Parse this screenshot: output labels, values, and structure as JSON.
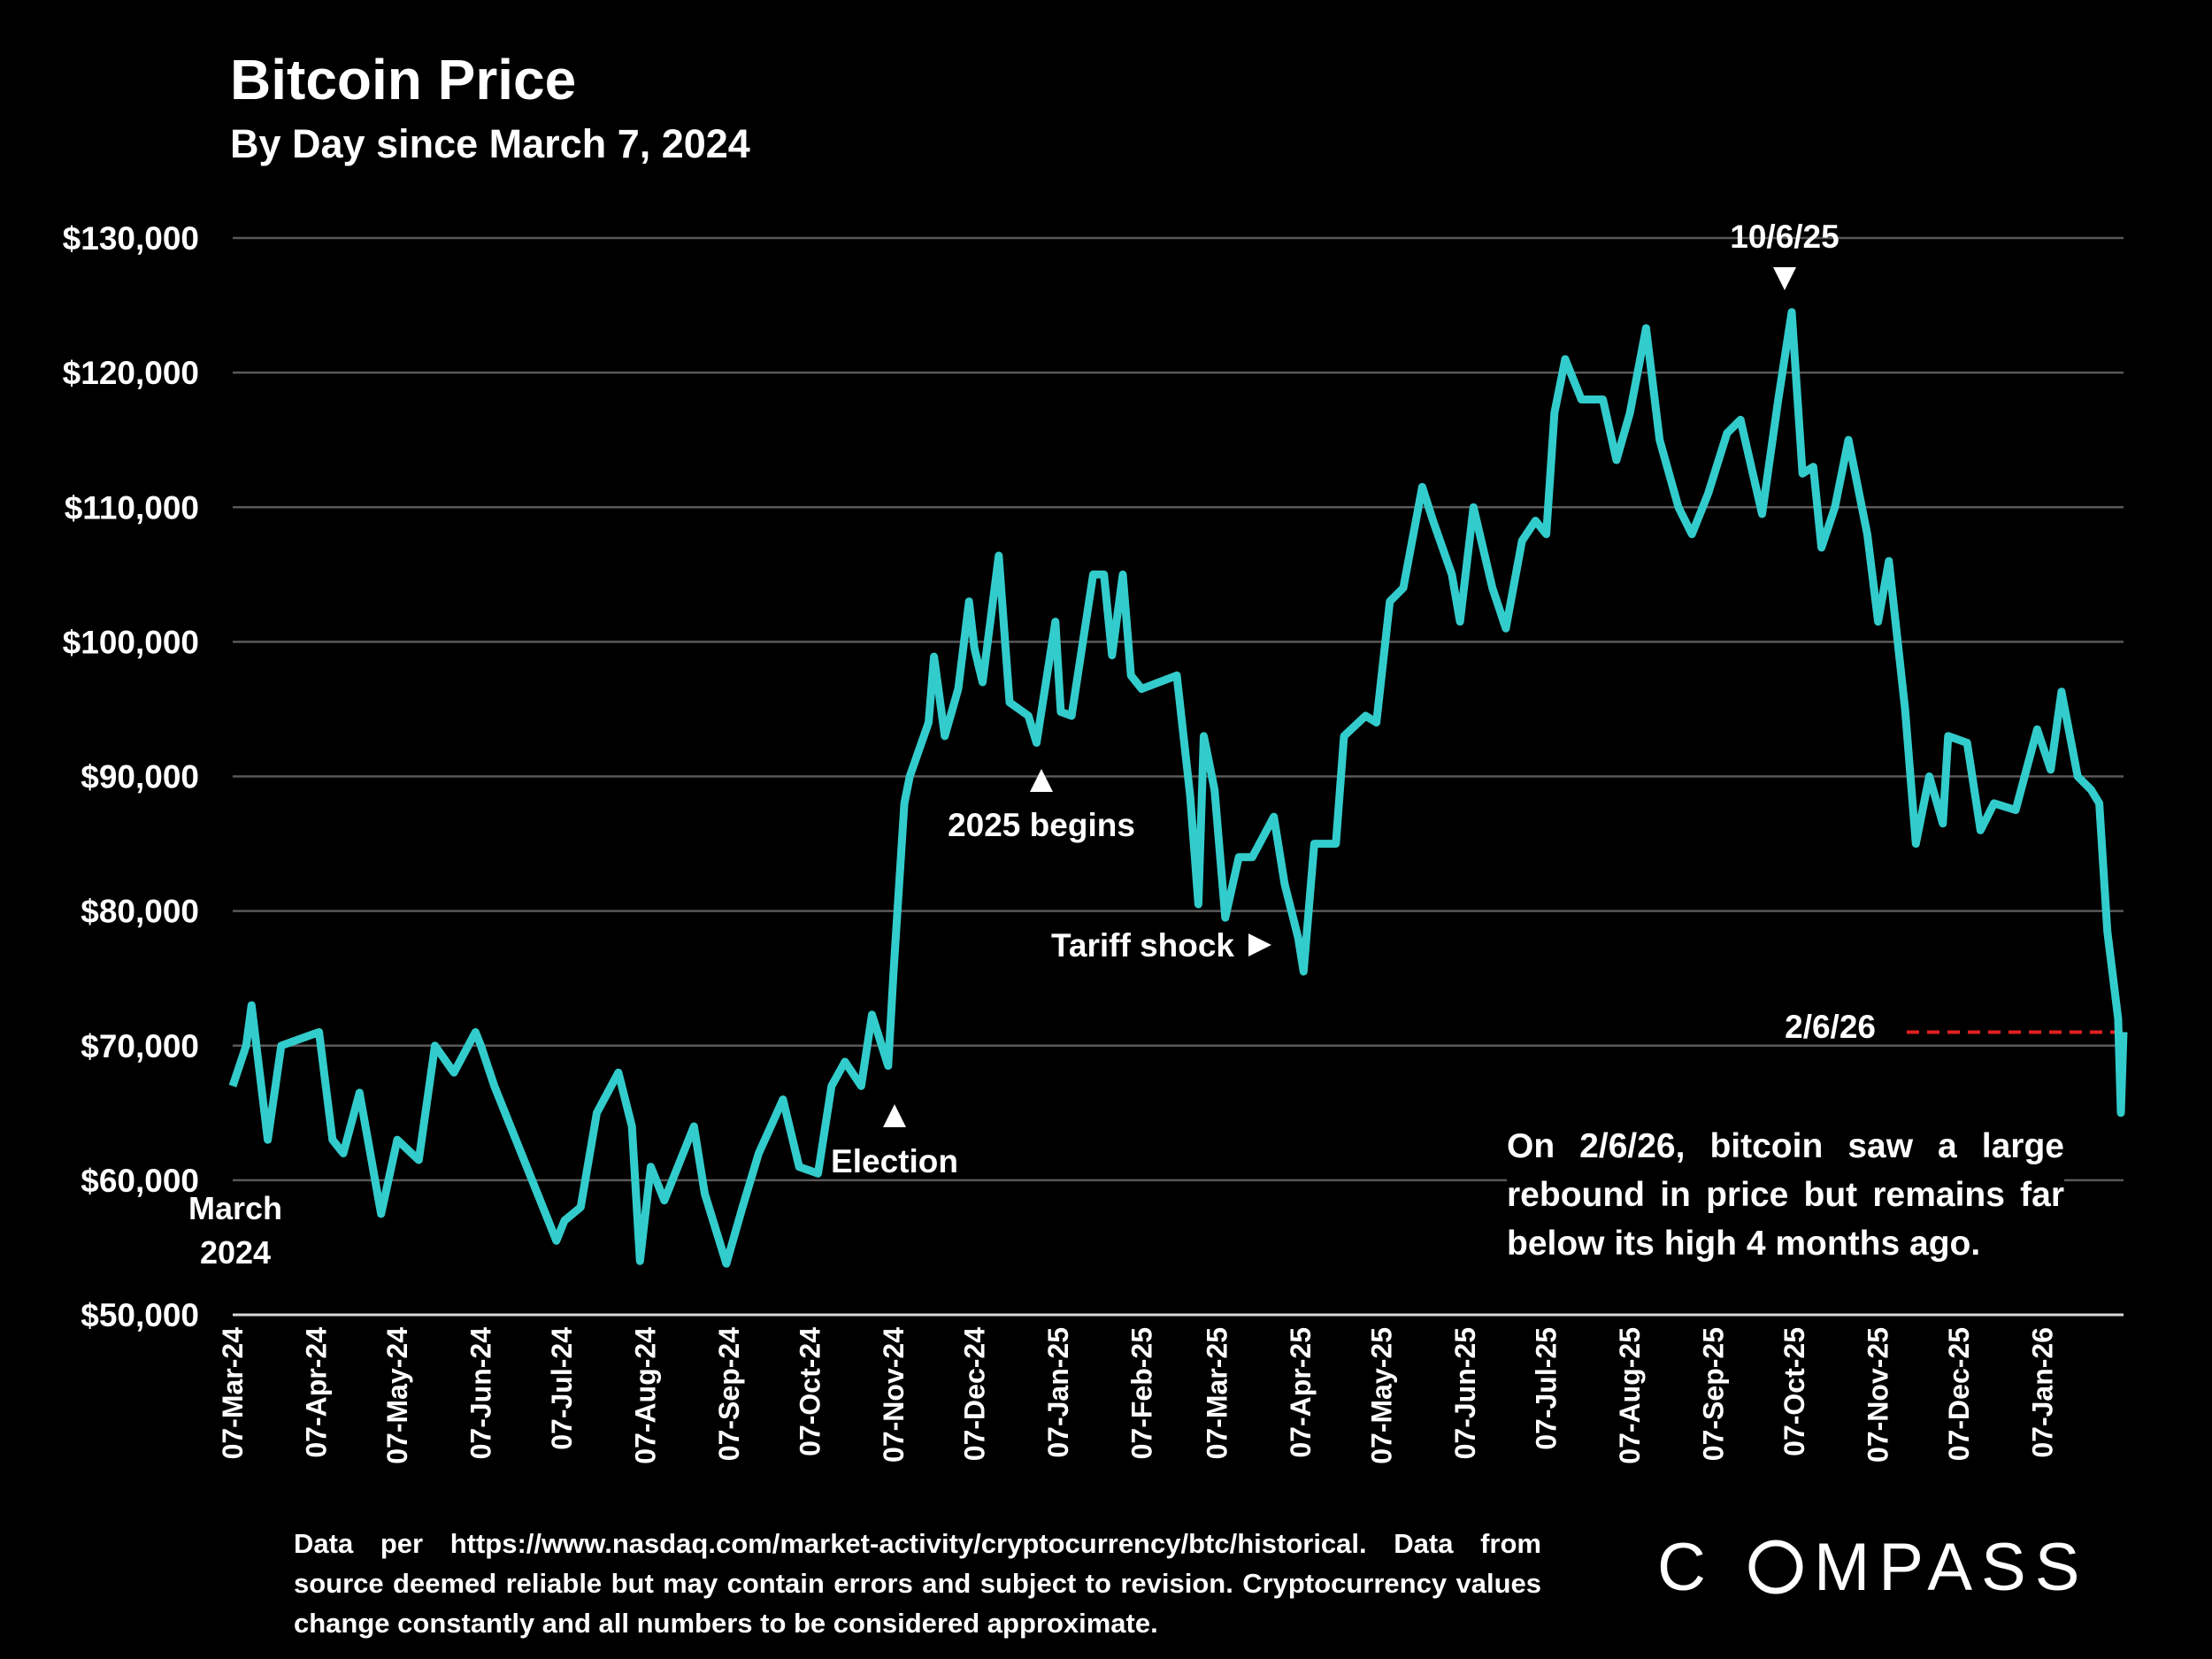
{
  "chart_data": {
    "type": "line",
    "title": "Bitcoin Price",
    "subtitle": "By Day since March 7, 2024",
    "ylim": [
      50000,
      130000
    ],
    "yticks": [
      "$50,000",
      "$60,000",
      "$70,000",
      "$80,000",
      "$90,000",
      "$100,000",
      "$110,000",
      "$120,000",
      "$130,000"
    ],
    "ytick_values": [
      50000,
      60000,
      70000,
      80000,
      90000,
      100000,
      110000,
      120000,
      130000
    ],
    "xlim": [
      "2024-03-07",
      "2026-02-06"
    ],
    "xticks": [
      "07-Mar-24",
      "07-Apr-24",
      "07-May-24",
      "07-Jun-24",
      "07-Jul-24",
      "07-Aug-24",
      "07-Sep-24",
      "07-Oct-24",
      "07-Nov-24",
      "07-Dec-24",
      "07-Jan-25",
      "07-Feb-25",
      "07-Mar-25",
      "07-Apr-25",
      "07-May-25",
      "07-Jun-25",
      "07-Jul-25",
      "07-Aug-25",
      "07-Sep-25",
      "07-Oct-25",
      "07-Nov-25",
      "07-Dec-25",
      "07-Jan-26"
    ],
    "xtick_dates": [
      "2024-03-07",
      "2024-04-07",
      "2024-05-07",
      "2024-06-07",
      "2024-07-07",
      "2024-08-07",
      "2024-09-07",
      "2024-10-07",
      "2024-11-07",
      "2024-12-07",
      "2025-01-07",
      "2025-02-07",
      "2025-03-07",
      "2025-04-07",
      "2025-05-07",
      "2025-06-07",
      "2025-07-07",
      "2025-08-07",
      "2025-09-07",
      "2025-10-07",
      "2025-11-07",
      "2025-12-07",
      "2026-01-07"
    ],
    "grid": true,
    "line_color": "#33cccc",
    "reference_line": {
      "value": 71000,
      "color": "#e02020",
      "label": "2/6/26"
    },
    "points": [
      [
        "2024-03-07",
        67000
      ],
      [
        "2024-03-12",
        70000
      ],
      [
        "2024-03-14",
        73000
      ],
      [
        "2024-03-20",
        63000
      ],
      [
        "2024-03-25",
        70000
      ],
      [
        "2024-04-01",
        70500
      ],
      [
        "2024-04-08",
        71000
      ],
      [
        "2024-04-13",
        63000
      ],
      [
        "2024-04-17",
        62000
      ],
      [
        "2024-04-23",
        66500
      ],
      [
        "2024-05-01",
        57500
      ],
      [
        "2024-05-07",
        63000
      ],
      [
        "2024-05-15",
        61500
      ],
      [
        "2024-05-21",
        70000
      ],
      [
        "2024-05-28",
        68000
      ],
      [
        "2024-06-05",
        71000
      ],
      [
        "2024-06-07",
        70000
      ],
      [
        "2024-06-12",
        67000
      ],
      [
        "2024-06-24",
        61000
      ],
      [
        "2024-07-05",
        55500
      ],
      [
        "2024-07-08",
        57000
      ],
      [
        "2024-07-14",
        58000
      ],
      [
        "2024-07-20",
        65000
      ],
      [
        "2024-07-28",
        68000
      ],
      [
        "2024-08-02",
        64000
      ],
      [
        "2024-08-05",
        54000
      ],
      [
        "2024-08-09",
        61000
      ],
      [
        "2024-08-14",
        58500
      ],
      [
        "2024-08-25",
        64000
      ],
      [
        "2024-08-29",
        59000
      ],
      [
        "2024-09-06",
        53800
      ],
      [
        "2024-09-12",
        58000
      ],
      [
        "2024-09-18",
        62000
      ],
      [
        "2024-09-27",
        66000
      ],
      [
        "2024-10-03",
        61000
      ],
      [
        "2024-10-10",
        60500
      ],
      [
        "2024-10-15",
        67000
      ],
      [
        "2024-10-20",
        68800
      ],
      [
        "2024-10-26",
        67000
      ],
      [
        "2024-10-30",
        72300
      ],
      [
        "2024-11-05",
        68500
      ],
      [
        "2024-11-07",
        75500
      ],
      [
        "2024-11-11",
        88000
      ],
      [
        "2024-11-13",
        90000
      ],
      [
        "2024-11-20",
        94000
      ],
      [
        "2024-11-22",
        98900
      ],
      [
        "2024-11-26",
        93000
      ],
      [
        "2024-12-01",
        96500
      ],
      [
        "2024-12-05",
        103000
      ],
      [
        "2024-12-07",
        99500
      ],
      [
        "2024-12-10",
        97000
      ],
      [
        "2024-12-16",
        106400
      ],
      [
        "2024-12-20",
        95500
      ],
      [
        "2024-12-27",
        94500
      ],
      [
        "2024-12-30",
        92500
      ],
      [
        "2025-01-06",
        101500
      ],
      [
        "2025-01-08",
        94800
      ],
      [
        "2025-01-12",
        94500
      ],
      [
        "2025-01-20",
        105000
      ],
      [
        "2025-01-24",
        105000
      ],
      [
        "2025-01-27",
        99000
      ],
      [
        "2025-01-31",
        105000
      ],
      [
        "2025-02-03",
        97500
      ],
      [
        "2025-02-07",
        96500
      ],
      [
        "2025-02-20",
        97500
      ],
      [
        "2025-02-25",
        88500
      ],
      [
        "2025-02-28",
        80500
      ],
      [
        "2025-03-02",
        93000
      ],
      [
        "2025-03-06",
        89000
      ],
      [
        "2025-03-10",
        79500
      ],
      [
        "2025-03-15",
        84000
      ],
      [
        "2025-03-20",
        84000
      ],
      [
        "2025-03-28",
        87000
      ],
      [
        "2025-04-01",
        82000
      ],
      [
        "2025-04-06",
        78000
      ],
      [
        "2025-04-08",
        75500
      ],
      [
        "2025-04-12",
        85000
      ],
      [
        "2025-04-20",
        85000
      ],
      [
        "2025-04-23",
        93000
      ],
      [
        "2025-05-01",
        94500
      ],
      [
        "2025-05-05",
        94000
      ],
      [
        "2025-05-10",
        103000
      ],
      [
        "2025-05-15",
        104000
      ],
      [
        "2025-05-22",
        111500
      ],
      [
        "2025-05-26",
        109000
      ],
      [
        "2025-06-02",
        105000
      ],
      [
        "2025-06-05",
        101500
      ],
      [
        "2025-06-10",
        110000
      ],
      [
        "2025-06-17",
        104000
      ],
      [
        "2025-06-22",
        101000
      ],
      [
        "2025-06-28",
        107500
      ],
      [
        "2025-07-03",
        109000
      ],
      [
        "2025-07-07",
        108000
      ],
      [
        "2025-07-10",
        117000
      ],
      [
        "2025-07-14",
        121000
      ],
      [
        "2025-07-20",
        118000
      ],
      [
        "2025-07-28",
        118000
      ],
      [
        "2025-08-02",
        113500
      ],
      [
        "2025-08-07",
        117000
      ],
      [
        "2025-08-13",
        123300
      ],
      [
        "2025-08-18",
        115000
      ],
      [
        "2025-08-25",
        110000
      ],
      [
        "2025-08-30",
        108000
      ],
      [
        "2025-09-05",
        111000
      ],
      [
        "2025-09-12",
        115500
      ],
      [
        "2025-09-17",
        116500
      ],
      [
        "2025-09-25",
        109500
      ],
      [
        "2025-10-01",
        118000
      ],
      [
        "2025-10-06",
        124500
      ],
      [
        "2025-10-10",
        112500
      ],
      [
        "2025-10-14",
        113000
      ],
      [
        "2025-10-17",
        107000
      ],
      [
        "2025-10-22",
        110000
      ],
      [
        "2025-10-27",
        115000
      ],
      [
        "2025-11-03",
        108000
      ],
      [
        "2025-11-07",
        101500
      ],
      [
        "2025-11-11",
        106000
      ],
      [
        "2025-11-17",
        95000
      ],
      [
        "2025-11-21",
        85000
      ],
      [
        "2025-11-26",
        90000
      ],
      [
        "2025-12-01",
        86500
      ],
      [
        "2025-12-03",
        93000
      ],
      [
        "2025-12-10",
        92500
      ],
      [
        "2025-12-15",
        86000
      ],
      [
        "2025-12-20",
        88000
      ],
      [
        "2025-12-28",
        87500
      ],
      [
        "2026-01-05",
        93500
      ],
      [
        "2026-01-10",
        90500
      ],
      [
        "2026-01-14",
        96300
      ],
      [
        "2026-01-20",
        90000
      ],
      [
        "2026-01-25",
        89000
      ],
      [
        "2026-01-28",
        88000
      ],
      [
        "2026-01-31",
        78500
      ],
      [
        "2026-02-04",
        72000
      ],
      [
        "2026-02-05",
        65000
      ],
      [
        "2026-02-06",
        71000
      ]
    ],
    "annotations": {
      "peak": "10/6/25",
      "year_start": "2025 begins",
      "tariff": "Tariff shock",
      "election": "Election",
      "start_line1": "March",
      "start_line2": "2024",
      "note": "On 2/6/26, bitcoin saw a large rebound in price but remains far below its high 4 months ago."
    }
  },
  "footer": {
    "source": "Data per https://www.nasdaq.com/market-activity/cryptocurrency/btc/historical. Data from source deemed reliable but may contain errors and subject to revision. Cryptocurrency values change constantly and all numbers to be considered approximate.",
    "logo": "COMPASS"
  }
}
